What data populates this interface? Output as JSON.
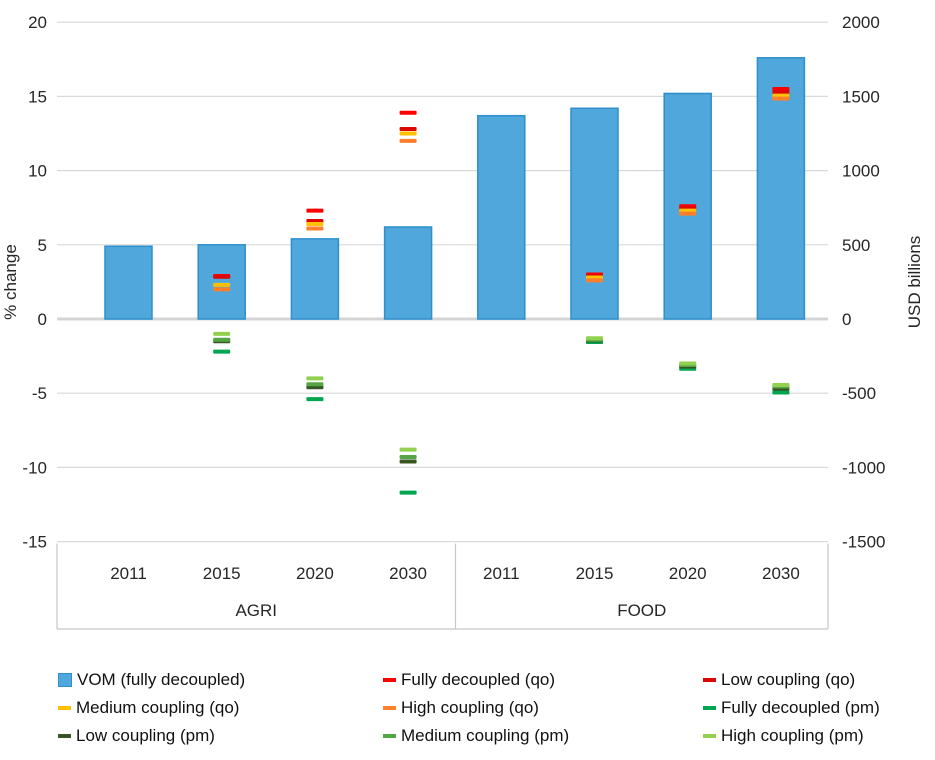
{
  "chart_data": {
    "type": "bar",
    "title": "",
    "left_axis": {
      "label": "% change",
      "ticks": [
        20,
        15,
        10,
        5,
        0,
        -5,
        -10,
        -15
      ],
      "min": -15,
      "max": 20
    },
    "right_axis": {
      "label": "USD billions",
      "ticks": [
        2000,
        1500,
        1000,
        500,
        0,
        -500,
        -1000,
        -1500
      ],
      "min": -1500,
      "max": 2000
    },
    "grid": "horizontal",
    "groups": [
      {
        "label": "AGRI",
        "years": [
          "2011",
          "2015",
          "2020",
          "2030"
        ]
      },
      {
        "label": "FOOD",
        "years": [
          "2011",
          "2015",
          "2020",
          "2030"
        ]
      }
    ],
    "categories": [
      "AGRI 2011",
      "AGRI 2015",
      "AGRI 2020",
      "AGRI 2030",
      "FOOD 2011",
      "FOOD 2015",
      "FOOD 2020",
      "FOOD 2030"
    ],
    "bar_series": {
      "name": "VOM (fully decoupled)",
      "color": "#4FA7DB",
      "border": "#2D8FCC",
      "values": [
        4.9,
        5.0,
        5.4,
        6.2,
        13.7,
        14.2,
        15.2,
        17.6
      ]
    },
    "marker_series": [
      {
        "name": "Fully decoupled (qo)",
        "color": "#FF0000",
        "values": [
          null,
          2.9,
          7.3,
          13.9,
          null,
          3.0,
          7.6,
          15.5
        ]
      },
      {
        "name": "Low coupling (qo)",
        "color": "#DD0806",
        "values": [
          null,
          2.85,
          6.6,
          12.8,
          null,
          2.9,
          7.45,
          15.3
        ]
      },
      {
        "name": "Medium coupling (qo)",
        "color": "#FFC000",
        "values": [
          null,
          2.3,
          6.4,
          12.5,
          null,
          2.8,
          7.3,
          15.05
        ]
      },
      {
        "name": "High coupling (qo)",
        "color": "#FF7F2B",
        "values": [
          null,
          2.0,
          6.1,
          12.0,
          null,
          2.6,
          7.1,
          14.85
        ]
      },
      {
        "name": "Fully decoupled (pm)",
        "color": "#00A550",
        "values": [
          null,
          -2.2,
          -5.4,
          -11.7,
          null,
          -1.55,
          -3.35,
          -4.95
        ]
      },
      {
        "name": "Low coupling (pm)",
        "color": "#375623",
        "values": [
          null,
          -1.5,
          -4.6,
          -9.6,
          null,
          -1.45,
          -3.2,
          -4.7
        ]
      },
      {
        "name": "Medium coupling (pm)",
        "color": "#55A546",
        "values": [
          null,
          -1.4,
          -4.4,
          -9.3,
          null,
          -1.4,
          -3.1,
          -4.55
        ]
      },
      {
        "name": "High coupling (pm)",
        "color": "#92D050",
        "values": [
          null,
          -1.0,
          -4.0,
          -8.8,
          null,
          -1.3,
          -3.0,
          -4.45
        ]
      }
    ],
    "legend": [
      {
        "label": "VOM (fully decoupled)",
        "swatch": "square",
        "color": "#4FA7DB",
        "border": "#2D8FCC"
      },
      {
        "label": "Fully decoupled (qo)",
        "swatch": "dash",
        "color": "#FF0000"
      },
      {
        "label": "Low coupling (qo)",
        "swatch": "dash",
        "color": "#DD0806"
      },
      {
        "label": "Medium coupling (qo)",
        "swatch": "dash",
        "color": "#FFC000"
      },
      {
        "label": "High coupling (qo)",
        "swatch": "dash",
        "color": "#FF7F2B"
      },
      {
        "label": "Fully decoupled (pm)",
        "swatch": "dash",
        "color": "#00A550"
      },
      {
        "label": "Low coupling (pm)",
        "swatch": "dash",
        "color": "#375623"
      },
      {
        "label": "Medium coupling (pm)",
        "swatch": "dash",
        "color": "#55A546"
      },
      {
        "label": "High coupling (pm)",
        "swatch": "dash",
        "color": "#92D050"
      }
    ],
    "colors": {
      "gridline": "#D9D9D9",
      "zero_line": "#D4D4D4",
      "axis_box": "#C6C6C6",
      "text": "#262626"
    }
  }
}
